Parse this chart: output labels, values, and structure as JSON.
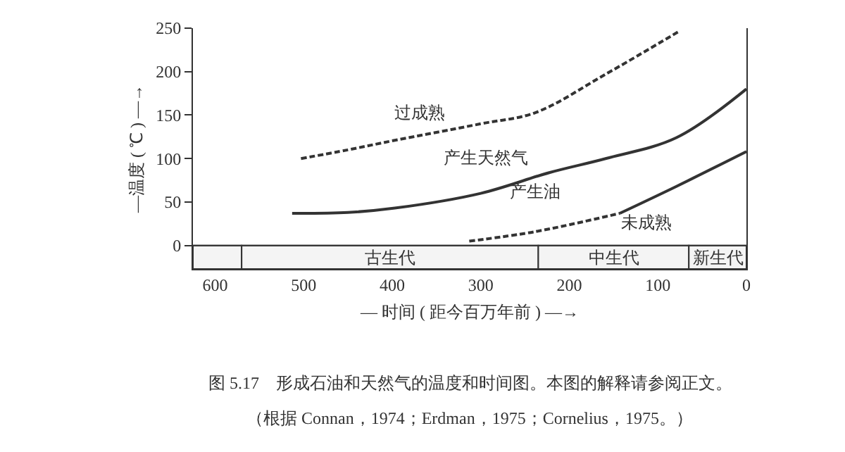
{
  "chart_data": {
    "type": "line",
    "xlabel": "— 时间 ( 距今百万年前 ) —→",
    "ylabel": "—温度 ( ℃ ) —→",
    "xlim": [
      625,
      0
    ],
    "xticks": [
      600,
      500,
      400,
      300,
      200,
      100,
      0
    ],
    "ylim": [
      -27,
      250
    ],
    "yticks": [
      0,
      50,
      100,
      150,
      200,
      250
    ],
    "marker": "none",
    "series": [
      {
        "color": "#333333",
        "line_style": "dashed",
        "x": [
          503,
          450,
          397,
          300,
          238,
          159,
          75
        ],
        "values": [
          100,
          110,
          121,
          140,
          153,
          197,
          247
        ]
      },
      {
        "color": "#333333",
        "line_style": "solid",
        "x": [
          513,
          450,
          397,
          300,
          222,
          159,
          79,
          0
        ],
        "values": [
          37,
          38,
          43,
          60,
          84,
          100,
          124,
          180
        ]
      },
      {
        "color": "#333333",
        "line_style": "dashed",
        "x": [
          313,
          238,
          143
        ],
        "values": [
          5,
          16,
          37
        ]
      },
      {
        "color": "#333333",
        "line_style": "solid",
        "x": [
          143,
          79,
          0
        ],
        "values": [
          37,
          68,
          108
        ]
      }
    ],
    "ref_lines": [
      {
        "axis": "y",
        "value": 0,
        "color": "#333333"
      }
    ],
    "bands": [
      {
        "axis": "x",
        "from": 625,
        "to": 570,
        "label": null,
        "color": "#f4f4f4"
      },
      {
        "axis": "x",
        "from": 570,
        "to": 235,
        "label": "古生代",
        "color": "#f4f4f4"
      },
      {
        "axis": "x",
        "from": 235,
        "to": 65,
        "label": "中生代",
        "color": "#f4f4f4"
      },
      {
        "axis": "x",
        "from": 65,
        "to": 0,
        "label": "新生代",
        "color": "#f4f4f4"
      }
    ],
    "annotations": [
      "过成熟",
      "产生天然气",
      "产生油",
      "未成熟",
      "图 5.17　形成石油和天然气的温度和时间图。本图的解释请参阅正文。",
      "（根据 Connan，1974；Erdman，1975；Cornelius，1975。）"
    ]
  }
}
